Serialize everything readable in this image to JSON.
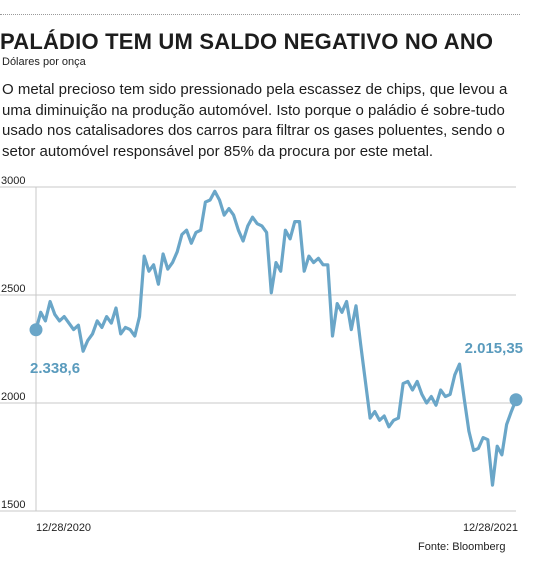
{
  "header": {
    "title": "PALÁDIO TEM UM SALDO NEGATIVO NO ANO",
    "subtitle": "Dólares por onça",
    "description": "O metal precioso tem sido pressionado pela escassez de chips, que levou a uma diminuição na produção automóvel. Isto porque o paládio é sobre-tudo usado nos catalisadores dos carros para filtrar os gases poluentes, sendo o setor automóvel responsável por 85% da procura por este metal."
  },
  "chart_data": {
    "type": "line",
    "title": "PALÁDIO TEM UM SALDO NEGATIVO NO ANO",
    "ylabel": "Dólares por onça",
    "ylim": [
      1500,
      3000
    ],
    "yticks": [
      "3000",
      "2500",
      "2000",
      "1500"
    ],
    "x_start_label": "12/28/2020",
    "x_end_label": "12/28/2021",
    "start_value_label": "2.338,6",
    "end_value_label": "2.015,35",
    "grid": "horizontal",
    "line_color": "#6aa6c8",
    "series": [
      {
        "values": [
          2339,
          2420,
          2380,
          2470,
          2410,
          2380,
          2400,
          2370,
          2340,
          2360,
          2240,
          2290,
          2320,
          2380,
          2350,
          2400,
          2370,
          2440,
          2320,
          2350,
          2340,
          2310,
          2400,
          2680,
          2610,
          2640,
          2550,
          2690,
          2620,
          2650,
          2700,
          2780,
          2800,
          2740,
          2790,
          2800,
          2930,
          2940,
          2980,
          2940,
          2870,
          2900,
          2870,
          2800,
          2750,
          2820,
          2860,
          2830,
          2820,
          2790,
          2510,
          2650,
          2610,
          2800,
          2760,
          2840,
          2840,
          2610,
          2680,
          2650,
          2670,
          2640,
          2640,
          2310,
          2460,
          2420,
          2470,
          2340,
          2450,
          2270,
          2100,
          1930,
          1960,
          1920,
          1940,
          1890,
          1920,
          1930,
          2090,
          2100,
          2060,
          2100,
          2040,
          2000,
          2030,
          1990,
          2060,
          2030,
          2040,
          2130,
          2180,
          2020,
          1870,
          1780,
          1790,
          1840,
          1830,
          1620,
          1800,
          1760,
          1900,
          1960,
          2015
        ]
      }
    ]
  },
  "source": "Fonte: Bloomberg"
}
